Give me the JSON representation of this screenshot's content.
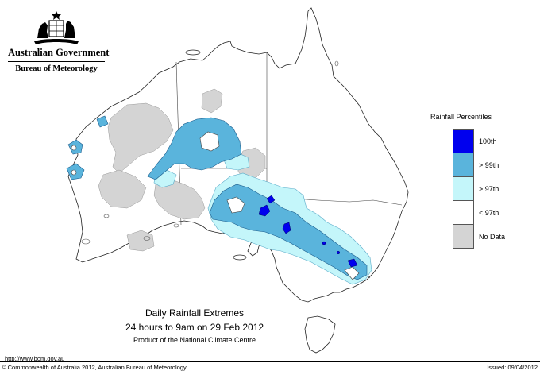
{
  "header": {
    "government": "Australian Government",
    "bureau": "Bureau of Meteorology",
    "crest_icon": "coat-of-arms-icon"
  },
  "legend": {
    "title": "Rainfall Percentiles",
    "items": [
      {
        "label": "100th",
        "color": "#0000ee"
      },
      {
        "label": "> 99th",
        "color": "#5ab4dc"
      },
      {
        "label": "> 97th",
        "color": "#c4f6fa"
      },
      {
        "label": "< 97th",
        "color": "#ffffff"
      },
      {
        "label": "No Data",
        "color": "#d4d4d4"
      }
    ]
  },
  "caption": {
    "title": "Daily Rainfall Extremes",
    "period": "24 hours to 9am on 29 Feb 2012",
    "product": "Product of the National Climate Centre"
  },
  "footer": {
    "url": "http://www.bom.gov.au",
    "copyright": "© Commonwealth of Australia 2012, Australian Bureau of Meteorology",
    "issued": "Issued: 09/04/2012"
  }
}
